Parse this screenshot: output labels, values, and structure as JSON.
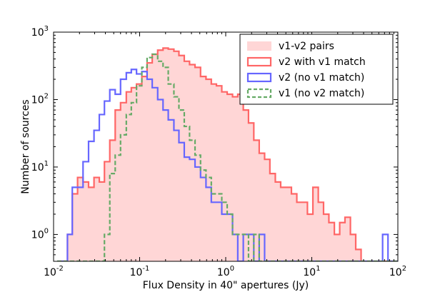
{
  "chart_data": {
    "type": "histogram",
    "xlabel": "Flux Density in 40\" apertures (Jy)",
    "ylabel": "Number of sources",
    "xscale": "log",
    "yscale": "log",
    "xlim": [
      0.01,
      100
    ],
    "ylim": [
      0.4,
      1000
    ],
    "x_ticks": [
      {
        "value": 0.01,
        "base": "10",
        "exp": "-2"
      },
      {
        "value": 0.1,
        "base": "10",
        "exp": "-1"
      },
      {
        "value": 1,
        "base": "10",
        "exp": "0"
      },
      {
        "value": 10,
        "base": "10",
        "exp": "1"
      },
      {
        "value": 100,
        "base": "10",
        "exp": "2"
      }
    ],
    "y_ticks": [
      {
        "value": 1,
        "base": "10",
        "exp": "0"
      },
      {
        "value": 10,
        "base": "10",
        "exp": "1"
      },
      {
        "value": 100,
        "base": "10",
        "exp": "2"
      },
      {
        "value": 1000,
        "base": "10",
        "exp": "3"
      }
    ],
    "legend_position": "top-right",
    "series": [
      {
        "name": "v1-v2 pairs",
        "style": "fill",
        "color": "#ffd6d6",
        "edges": [
          0.011,
          0.012,
          0.0145,
          0.0165,
          0.019,
          0.022,
          0.0255,
          0.0295,
          0.034,
          0.039,
          0.045,
          0.052,
          0.06,
          0.07,
          0.08,
          0.092,
          0.106,
          0.122,
          0.14,
          0.162,
          0.187,
          0.215,
          0.25,
          0.286,
          0.33,
          0.38,
          0.44,
          0.51,
          0.59,
          0.68,
          0.78,
          0.9,
          1.04,
          1.2,
          1.38,
          1.6,
          1.84,
          2.12,
          2.45,
          2.83,
          3.26,
          3.77,
          4.35,
          5.02,
          5.8,
          6.7,
          7.7,
          8.9,
          10.3,
          11.9,
          13.7,
          15.8,
          18.3,
          21.1,
          24.3,
          28.1,
          32.4,
          37.4,
          43.2,
          49.9,
          57.6,
          66.5,
          76.8,
          88.6,
          100
        ],
        "values": [
          0.4,
          0.4,
          1,
          4,
          7,
          6,
          5,
          7,
          6,
          12,
          25,
          70,
          90,
          130,
          150,
          170,
          220,
          350,
          470,
          540,
          580,
          560,
          520,
          450,
          370,
          330,
          300,
          220,
          200,
          170,
          160,
          130,
          120,
          110,
          120,
          70,
          45,
          25,
          16,
          13,
          8,
          6,
          5,
          5,
          4,
          3,
          3,
          2,
          5,
          3,
          2,
          1.5,
          1.0,
          1.5,
          1.8,
          1.0,
          0.6,
          0.4,
          0.4,
          0.4,
          0.4,
          0.4,
          0.4,
          0.4
        ]
      },
      {
        "name": "v2 with v1 match",
        "style": "step",
        "color": "#ff6666",
        "edges": [
          0.011,
          0.012,
          0.0145,
          0.0165,
          0.019,
          0.022,
          0.0255,
          0.0295,
          0.034,
          0.039,
          0.045,
          0.052,
          0.06,
          0.07,
          0.08,
          0.092,
          0.106,
          0.122,
          0.14,
          0.162,
          0.187,
          0.215,
          0.25,
          0.286,
          0.33,
          0.38,
          0.44,
          0.51,
          0.59,
          0.68,
          0.78,
          0.9,
          1.04,
          1.2,
          1.38,
          1.6,
          1.84,
          2.12,
          2.45,
          2.83,
          3.26,
          3.77,
          4.35,
          5.02,
          5.8,
          6.7,
          7.7,
          8.9,
          10.3,
          11.9,
          13.7,
          15.8,
          18.3,
          21.1,
          24.3,
          28.1,
          32.4,
          37.4,
          43.2,
          49.9,
          57.6,
          66.5,
          76.8,
          88.6,
          100
        ],
        "values": [
          0.4,
          0.4,
          1,
          4,
          7,
          6,
          5,
          7,
          6,
          12,
          25,
          70,
          90,
          130,
          150,
          170,
          220,
          350,
          470,
          540,
          580,
          560,
          520,
          450,
          370,
          330,
          300,
          220,
          200,
          170,
          160,
          130,
          120,
          110,
          120,
          70,
          45,
          25,
          16,
          13,
          8,
          6,
          5,
          5,
          4,
          3,
          3,
          2,
          5,
          3,
          2,
          1.5,
          1.0,
          1.5,
          1.8,
          1.0,
          0.6,
          0.4,
          0.4,
          0.4,
          0.4,
          0.4,
          0.4,
          0.4
        ]
      },
      {
        "name": "v2 (no v1 match)",
        "style": "step",
        "color": "#6666ff",
        "edges": [
          0.011,
          0.012,
          0.0145,
          0.0165,
          0.019,
          0.022,
          0.0255,
          0.0295,
          0.034,
          0.039,
          0.045,
          0.052,
          0.06,
          0.07,
          0.08,
          0.092,
          0.106,
          0.122,
          0.14,
          0.162,
          0.187,
          0.215,
          0.25,
          0.286,
          0.33,
          0.38,
          0.44,
          0.51,
          0.59,
          0.68,
          0.78,
          0.9,
          1.04,
          1.2,
          1.38,
          1.6,
          1.84,
          2.12,
          2.45,
          2.83,
          3.26,
          3.77,
          4.35,
          5.02,
          5.8,
          6.7,
          7.7,
          8.9,
          10.3,
          11.9,
          13.7,
          15.8,
          18.3,
          21.1,
          24.3,
          28.1,
          32.4,
          37.4,
          43.2,
          49.9,
          57.6,
          66.5,
          76.8,
          88.6,
          100
        ],
        "values": [
          0.4,
          0.4,
          1,
          5,
          5,
          12,
          24,
          35,
          60,
          95,
          140,
          120,
          200,
          250,
          280,
          240,
          260,
          200,
          150,
          100,
          70,
          50,
          35,
          23,
          14,
          13,
          10,
          7,
          5,
          3,
          3,
          2,
          2,
          1,
          0.4,
          1,
          1,
          0.4,
          1,
          0.4,
          0.4,
          0.4,
          0.4,
          0.4,
          0.4,
          0.4,
          0.4,
          0.4,
          0.4,
          0.4,
          0.4,
          0.4,
          0.4,
          0.4,
          0.4,
          0.4,
          0.4,
          0.4,
          0.4,
          0.4,
          0.4,
          1.0,
          0.4,
          0.4
        ]
      },
      {
        "name": "v1 (no v2 match)",
        "style": "step-dashed",
        "color": "#66aa66",
        "edges": [
          0.011,
          0.012,
          0.0145,
          0.0165,
          0.019,
          0.022,
          0.0255,
          0.0295,
          0.034,
          0.039,
          0.045,
          0.052,
          0.06,
          0.07,
          0.08,
          0.092,
          0.106,
          0.122,
          0.14,
          0.162,
          0.187,
          0.215,
          0.25,
          0.286,
          0.33,
          0.38,
          0.44,
          0.51,
          0.59,
          0.68,
          0.78,
          0.9,
          1.04,
          1.2,
          1.38,
          1.6,
          1.84,
          2.12,
          2.45,
          2.83,
          3.26,
          3.77,
          4.35,
          5.02,
          5.8,
          6.7,
          7.7,
          8.9,
          10.3,
          11.9,
          13.7,
          15.8,
          18.3,
          21.1,
          24.3,
          28.1,
          32.4,
          37.4,
          43.2,
          49.9,
          57.6,
          66.5,
          76.8,
          88.6,
          100
        ],
        "values": [
          0.4,
          0.4,
          0.4,
          0.4,
          0.4,
          0.4,
          0.4,
          0.4,
          0.4,
          1,
          8,
          15,
          30,
          60,
          90,
          160,
          300,
          420,
          470,
          370,
          300,
          170,
          110,
          70,
          40,
          25,
          15,
          9,
          7,
          4,
          4,
          3,
          2,
          1,
          1,
          1,
          0.4,
          1,
          0.4,
          0.4,
          0.4,
          0.4,
          0.4,
          0.4,
          0.4,
          0.4,
          0.4,
          0.4,
          0.4,
          0.4,
          0.4,
          0.4,
          0.4,
          0.4,
          0.4,
          0.4,
          0.4,
          0.4,
          0.4,
          0.4,
          0.4,
          0.4,
          0.4,
          0.4
        ]
      }
    ]
  }
}
